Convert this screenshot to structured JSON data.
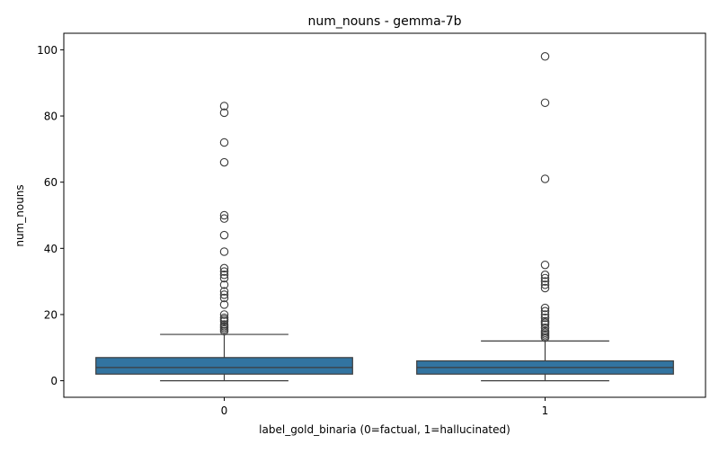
{
  "chart_data": {
    "type": "box",
    "title": "num_nouns - gemma-7b",
    "xlabel": "label_gold_binaria (0=factual, 1=hallucinated)",
    "ylabel": "num_nouns",
    "categories": [
      "0",
      "1"
    ],
    "ylim": [
      -5,
      105
    ],
    "yticks": [
      0,
      20,
      40,
      60,
      80,
      100
    ],
    "grid": false,
    "box_color": "#3274a1",
    "boxes": [
      {
        "category": "0",
        "whisker_low": 0,
        "q1": 2,
        "median": 4,
        "q3": 7,
        "whisker_high": 14,
        "outliers": [
          15,
          15.5,
          16,
          16.5,
          17,
          18,
          18.5,
          19,
          20,
          23,
          25,
          26,
          27,
          29,
          31,
          32,
          33,
          34,
          39,
          44,
          49,
          50,
          66,
          72,
          81,
          83
        ]
      },
      {
        "category": "1",
        "whisker_low": 0,
        "q1": 2,
        "median": 4,
        "q3": 6,
        "whisker_high": 12,
        "outliers": [
          13,
          13.5,
          14,
          14.5,
          15,
          16,
          17,
          17.5,
          18,
          19,
          20,
          21,
          22,
          28,
          29,
          30,
          31,
          32,
          35,
          61,
          84,
          98
        ]
      }
    ]
  }
}
